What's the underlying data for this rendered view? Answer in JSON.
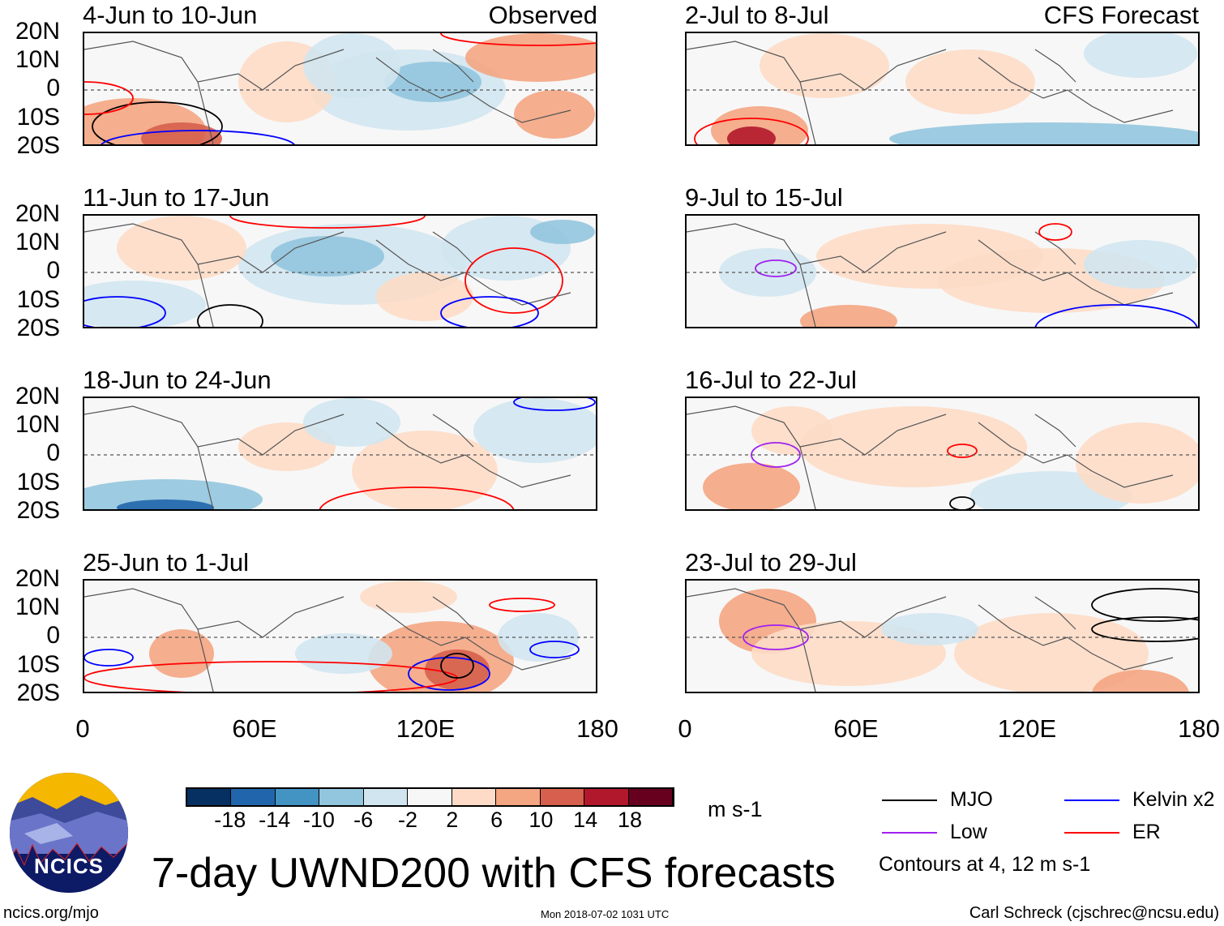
{
  "figure": {
    "title": "7-day UWND200 with CFS forecasts",
    "left_header": "Observed",
    "right_header": "CFS Forecast",
    "footer_left": "ncics.org/mjo",
    "footer_center": "Mon 2018-07-02 1031 UTC",
    "footer_right": "Carl Schreck (cjschrec@ncsu.edu)",
    "logo_text": "NCICS"
  },
  "panels_left": [
    {
      "title": "4-Jun to 10-Jun"
    },
    {
      "title": "11-Jun to 17-Jun"
    },
    {
      "title": "18-Jun to 24-Jun"
    },
    {
      "title": "25-Jun to 1-Jul"
    }
  ],
  "panels_right": [
    {
      "title": "2-Jul to 8-Jul"
    },
    {
      "title": "9-Jul to 15-Jul"
    },
    {
      "title": "16-Jul to 22-Jul"
    },
    {
      "title": "23-Jul to 29-Jul"
    }
  ],
  "y_ticks": [
    "20N",
    "10N",
    "0",
    "10S",
    "20S"
  ],
  "x_ticks": [
    "0",
    "60E",
    "120E",
    "180"
  ],
  "colorbar": {
    "units": "m s-1",
    "labels": [
      "-18",
      "-14",
      "-10",
      "-6",
      "-2",
      "2",
      "6",
      "10",
      "14",
      "18"
    ],
    "colors": [
      "#053061",
      "#2166ac",
      "#4393c3",
      "#92c5de",
      "#d1e5f0",
      "#f7f7f7",
      "#fddbc7",
      "#f4a582",
      "#d6604d",
      "#b2182b",
      "#67001f"
    ]
  },
  "legend": {
    "items": [
      {
        "label": "MJO",
        "color": "#000000"
      },
      {
        "label": "Kelvin x2",
        "color": "#0000ff"
      },
      {
        "label": "Low",
        "color": "#a020f0"
      },
      {
        "label": "ER",
        "color": "#ff0000"
      }
    ],
    "note": "Contours at 4, 12 m s-1"
  }
}
